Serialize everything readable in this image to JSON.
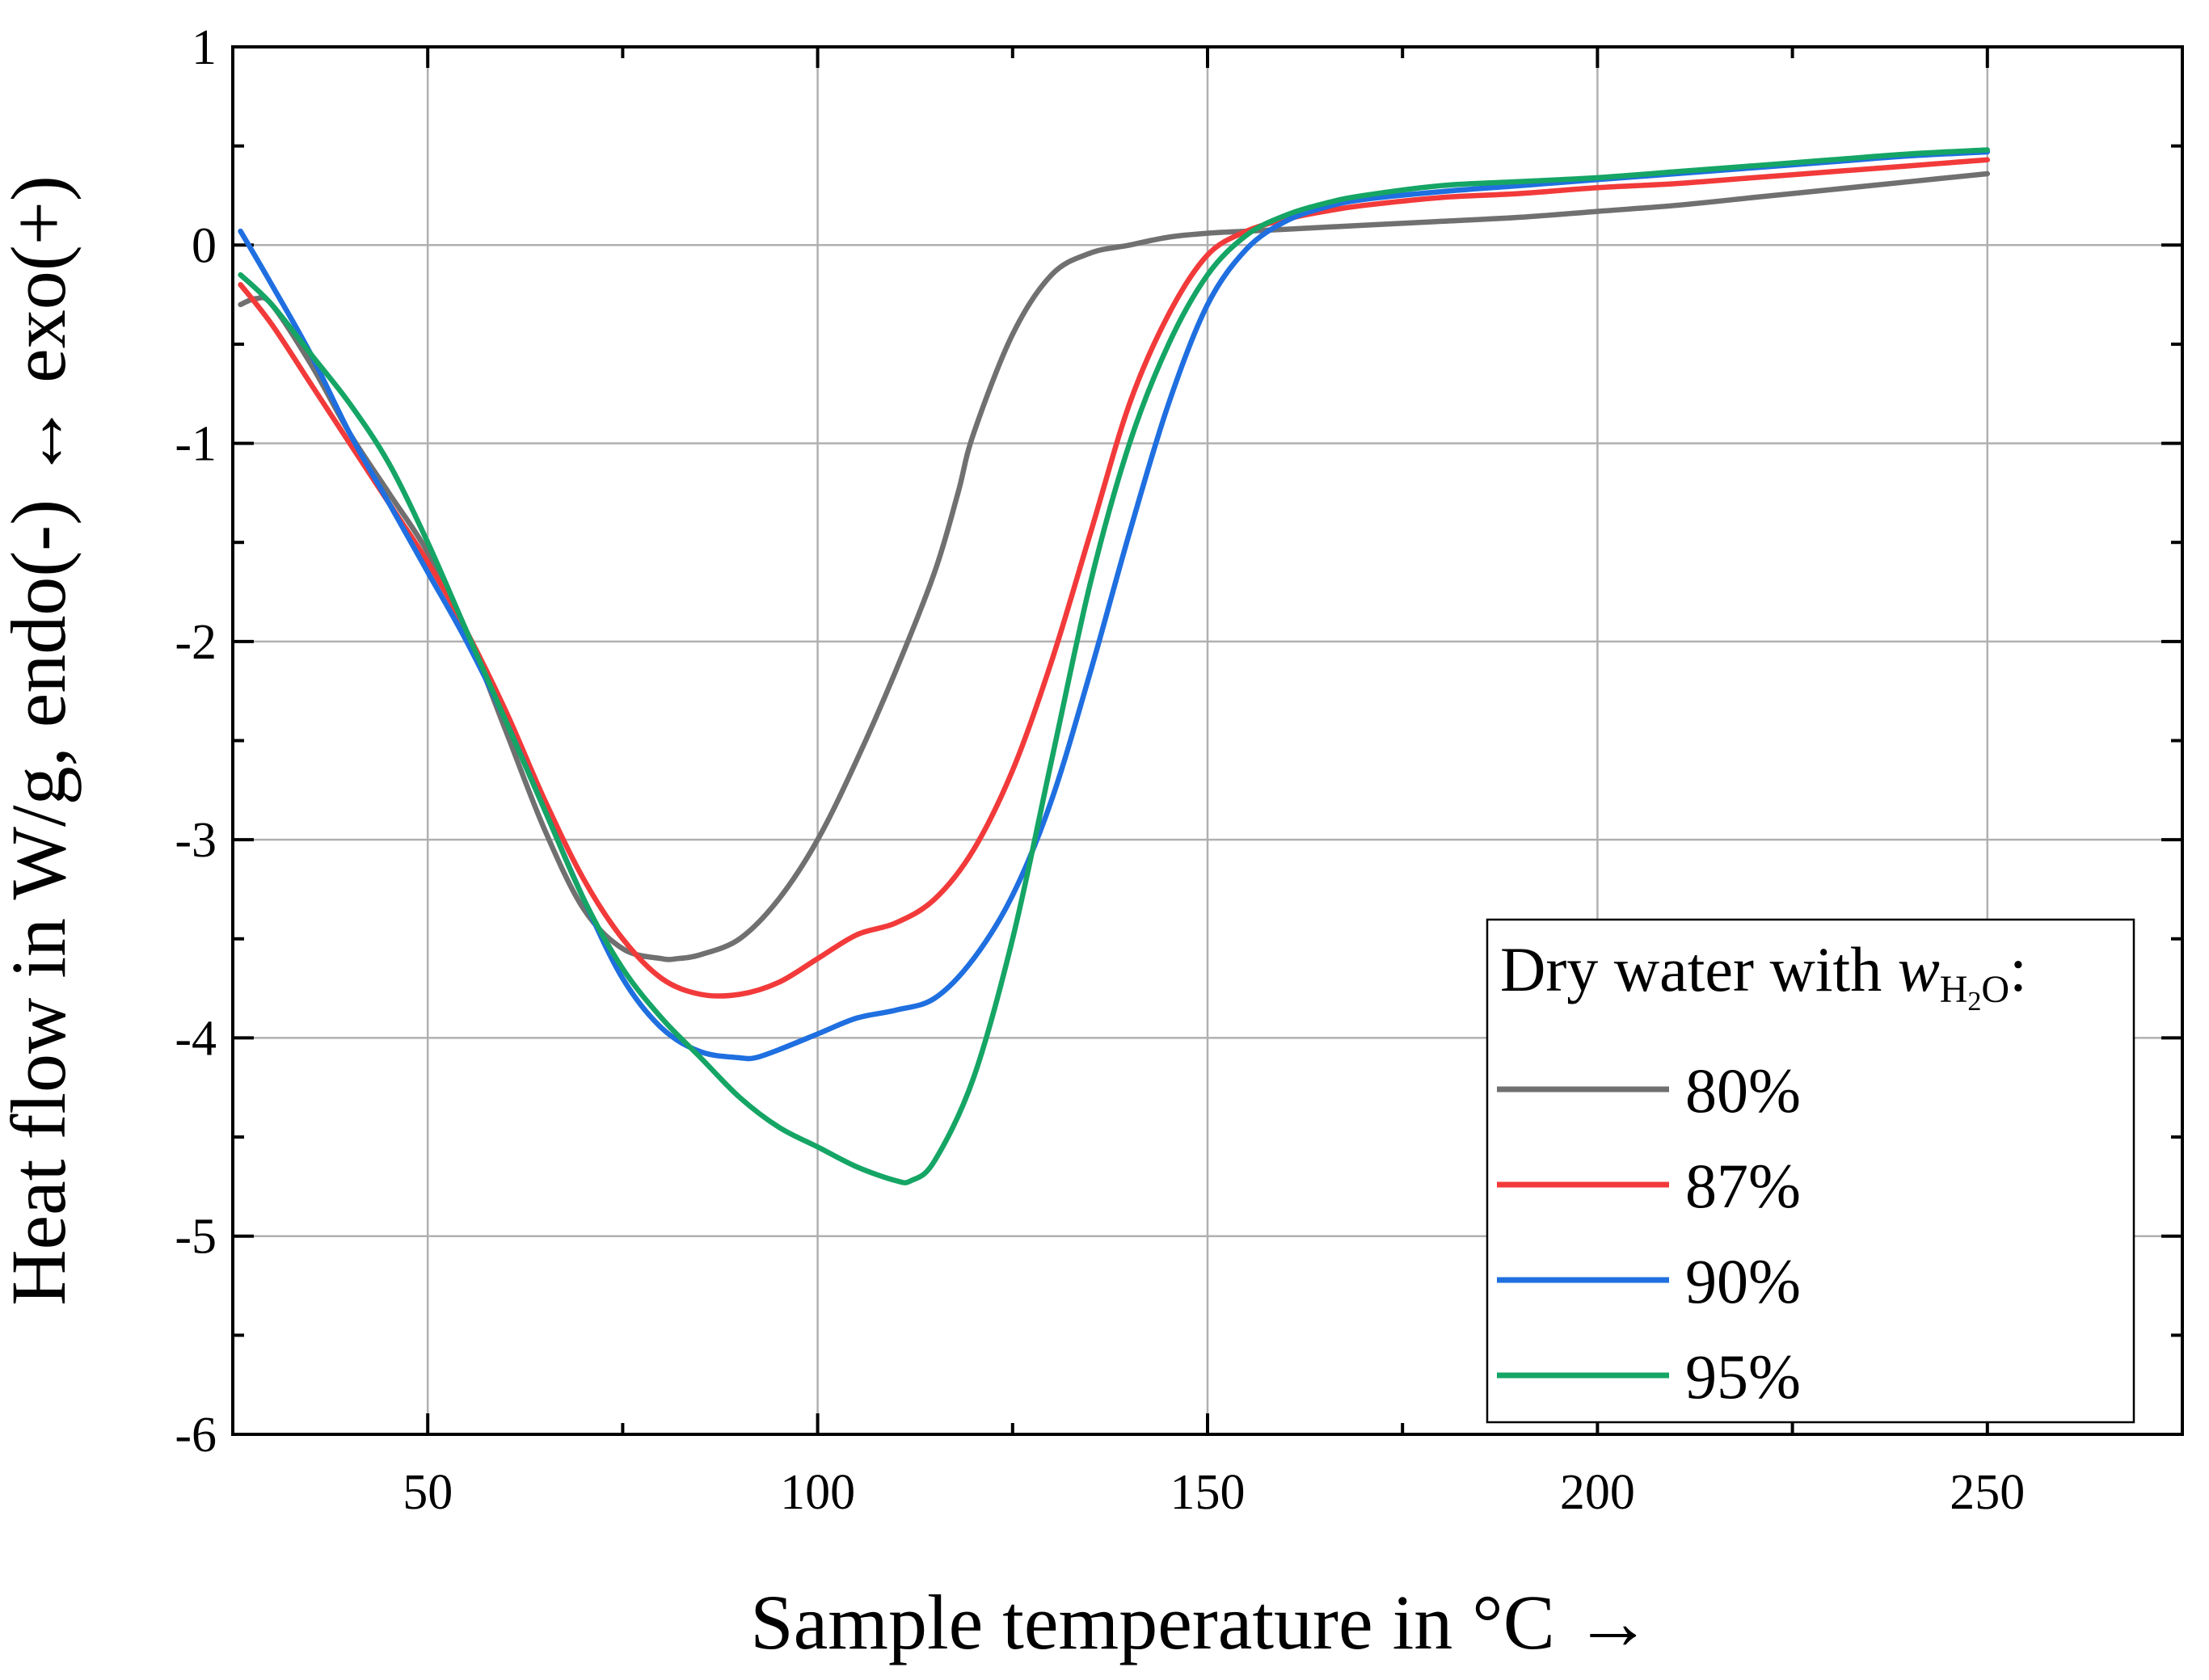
{
  "chart_data": {
    "type": "line",
    "title": "",
    "xlabel": "Sample temperature in °C →",
    "ylabel": "Heat flow in W/g, endo(-) ↔ exo(+)",
    "xlim": [
      25,
      275
    ],
    "ylim": [
      -6,
      1
    ],
    "xticks": [
      50,
      100,
      150,
      200,
      250
    ],
    "xtick_labels": [
      "50",
      "100",
      "150",
      "200",
      "250"
    ],
    "yticks": [
      1,
      0,
      -1,
      -2,
      -3,
      -4,
      -5,
      -6
    ],
    "ytick_labels": [
      "1",
      "0",
      "-1",
      "-2",
      "-3",
      "-4",
      "-5",
      "-6"
    ],
    "grid": true,
    "legend": {
      "position": "bottom-right",
      "title_prefix": "Dry water with ",
      "title_var": "w",
      "title_sub_h": "H",
      "title_sub_2": "2",
      "title_sub_o": "O",
      "title_suffix": ":"
    },
    "series": [
      {
        "name": "80%",
        "color": "#707070",
        "x": [
          26,
          28,
          30,
          35,
          40,
          45,
          50,
          55,
          60,
          65,
          70,
          75,
          80,
          82,
          85,
          90,
          95,
          100,
          105,
          110,
          115,
          118,
          120,
          125,
          130,
          135,
          140,
          145,
          150,
          155,
          160,
          170,
          180,
          190,
          200,
          210,
          220,
          230,
          240,
          250
        ],
        "y": [
          -0.3,
          -0.27,
          -0.3,
          -0.6,
          -0.95,
          -1.25,
          -1.55,
          -1.95,
          -2.45,
          -2.95,
          -3.35,
          -3.55,
          -3.6,
          -3.6,
          -3.58,
          -3.5,
          -3.3,
          -3.0,
          -2.6,
          -2.15,
          -1.65,
          -1.25,
          -0.95,
          -0.45,
          -0.15,
          -0.04,
          0.0,
          0.04,
          0.06,
          0.07,
          0.08,
          0.1,
          0.12,
          0.14,
          0.17,
          0.2,
          0.24,
          0.28,
          0.32,
          0.36
        ]
      },
      {
        "name": "87%",
        "color": "#f23a3a",
        "x": [
          26,
          30,
          35,
          40,
          45,
          50,
          55,
          60,
          65,
          70,
          75,
          80,
          85,
          90,
          95,
          100,
          105,
          110,
          115,
          120,
          125,
          130,
          135,
          140,
          145,
          150,
          155,
          160,
          165,
          170,
          180,
          190,
          200,
          210,
          220,
          230,
          240,
          250
        ],
        "y": [
          -0.2,
          -0.4,
          -0.7,
          -1.0,
          -1.3,
          -1.6,
          -1.95,
          -2.35,
          -2.8,
          -3.2,
          -3.5,
          -3.7,
          -3.78,
          -3.78,
          -3.72,
          -3.6,
          -3.48,
          -3.42,
          -3.3,
          -3.05,
          -2.65,
          -2.1,
          -1.45,
          -0.8,
          -0.35,
          -0.05,
          0.07,
          0.13,
          0.17,
          0.2,
          0.24,
          0.26,
          0.29,
          0.31,
          0.34,
          0.37,
          0.4,
          0.43
        ]
      },
      {
        "name": "90%",
        "color": "#1f6fe0",
        "x": [
          26,
          30,
          35,
          40,
          45,
          50,
          55,
          60,
          65,
          70,
          75,
          80,
          85,
          90,
          92,
          95,
          100,
          105,
          110,
          115,
          120,
          125,
          130,
          135,
          140,
          145,
          150,
          155,
          160,
          165,
          170,
          180,
          190,
          200,
          210,
          220,
          230,
          240,
          250
        ],
        "y": [
          0.07,
          -0.2,
          -0.55,
          -0.95,
          -1.3,
          -1.65,
          -2.0,
          -2.4,
          -2.85,
          -3.3,
          -3.7,
          -3.95,
          -4.07,
          -4.1,
          -4.1,
          -4.06,
          -3.98,
          -3.9,
          -3.86,
          -3.8,
          -3.6,
          -3.28,
          -2.8,
          -2.15,
          -1.45,
          -0.8,
          -0.3,
          -0.02,
          0.12,
          0.19,
          0.23,
          0.27,
          0.3,
          0.33,
          0.36,
          0.39,
          0.42,
          0.45,
          0.47
        ]
      },
      {
        "name": "95%",
        "color": "#15a565",
        "x": [
          26,
          30,
          35,
          40,
          45,
          50,
          55,
          60,
          65,
          70,
          75,
          80,
          85,
          90,
          95,
          100,
          105,
          110,
          112,
          115,
          120,
          125,
          130,
          135,
          140,
          145,
          150,
          155,
          160,
          165,
          170,
          180,
          190,
          200,
          210,
          220,
          230,
          240,
          250
        ],
        "y": [
          -0.15,
          -0.3,
          -0.55,
          -0.8,
          -1.1,
          -1.5,
          -1.95,
          -2.4,
          -2.85,
          -3.3,
          -3.65,
          -3.9,
          -4.1,
          -4.3,
          -4.45,
          -4.55,
          -4.65,
          -4.72,
          -4.72,
          -4.62,
          -4.2,
          -3.5,
          -2.6,
          -1.7,
          -1.0,
          -0.5,
          -0.15,
          0.05,
          0.15,
          0.21,
          0.25,
          0.3,
          0.32,
          0.34,
          0.37,
          0.4,
          0.43,
          0.46,
          0.48
        ]
      }
    ]
  }
}
